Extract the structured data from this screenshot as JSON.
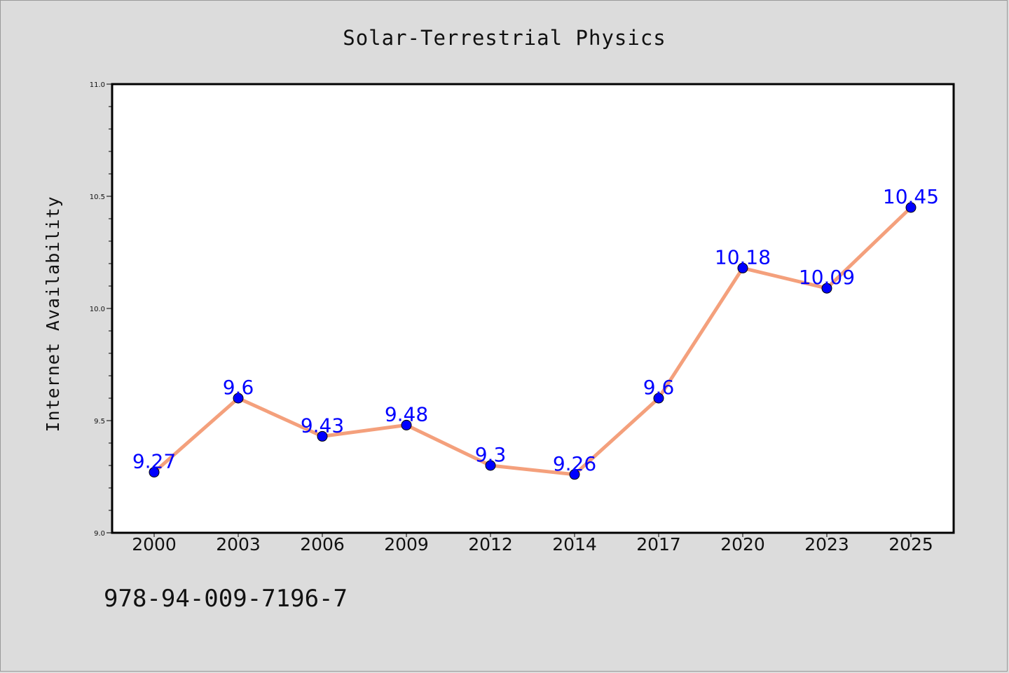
{
  "chart_data": {
    "type": "line",
    "title": "Solar-Terrestrial Physics",
    "xlabel": "",
    "ylabel": "Internet Availability",
    "categories": [
      "2000",
      "2003",
      "2006",
      "2009",
      "2012",
      "2014",
      "2017",
      "2020",
      "2023",
      "2025"
    ],
    "values": [
      9.27,
      9.6,
      9.43,
      9.48,
      9.3,
      9.26,
      9.6,
      10.18,
      10.09,
      10.45
    ],
    "data_labels": [
      "9.27",
      "9.6",
      "9.43",
      "9.48",
      "9.3",
      "9.26",
      "9.6",
      "10.18",
      "10.09",
      "10.45"
    ],
    "ylim": [
      9.0,
      11.0
    ],
    "yticks": [
      "9.0",
      "9.5",
      "10.0",
      "10.5",
      "11.0"
    ],
    "grid": false,
    "legend": "none",
    "colors": {
      "line": "#f4a07c",
      "marker": "#0000ff",
      "data_label": "#0000ff",
      "plot_background": "#ffffff",
      "page_background": "#dcdcdc"
    }
  },
  "footnote": "978-94-009-7196-7"
}
